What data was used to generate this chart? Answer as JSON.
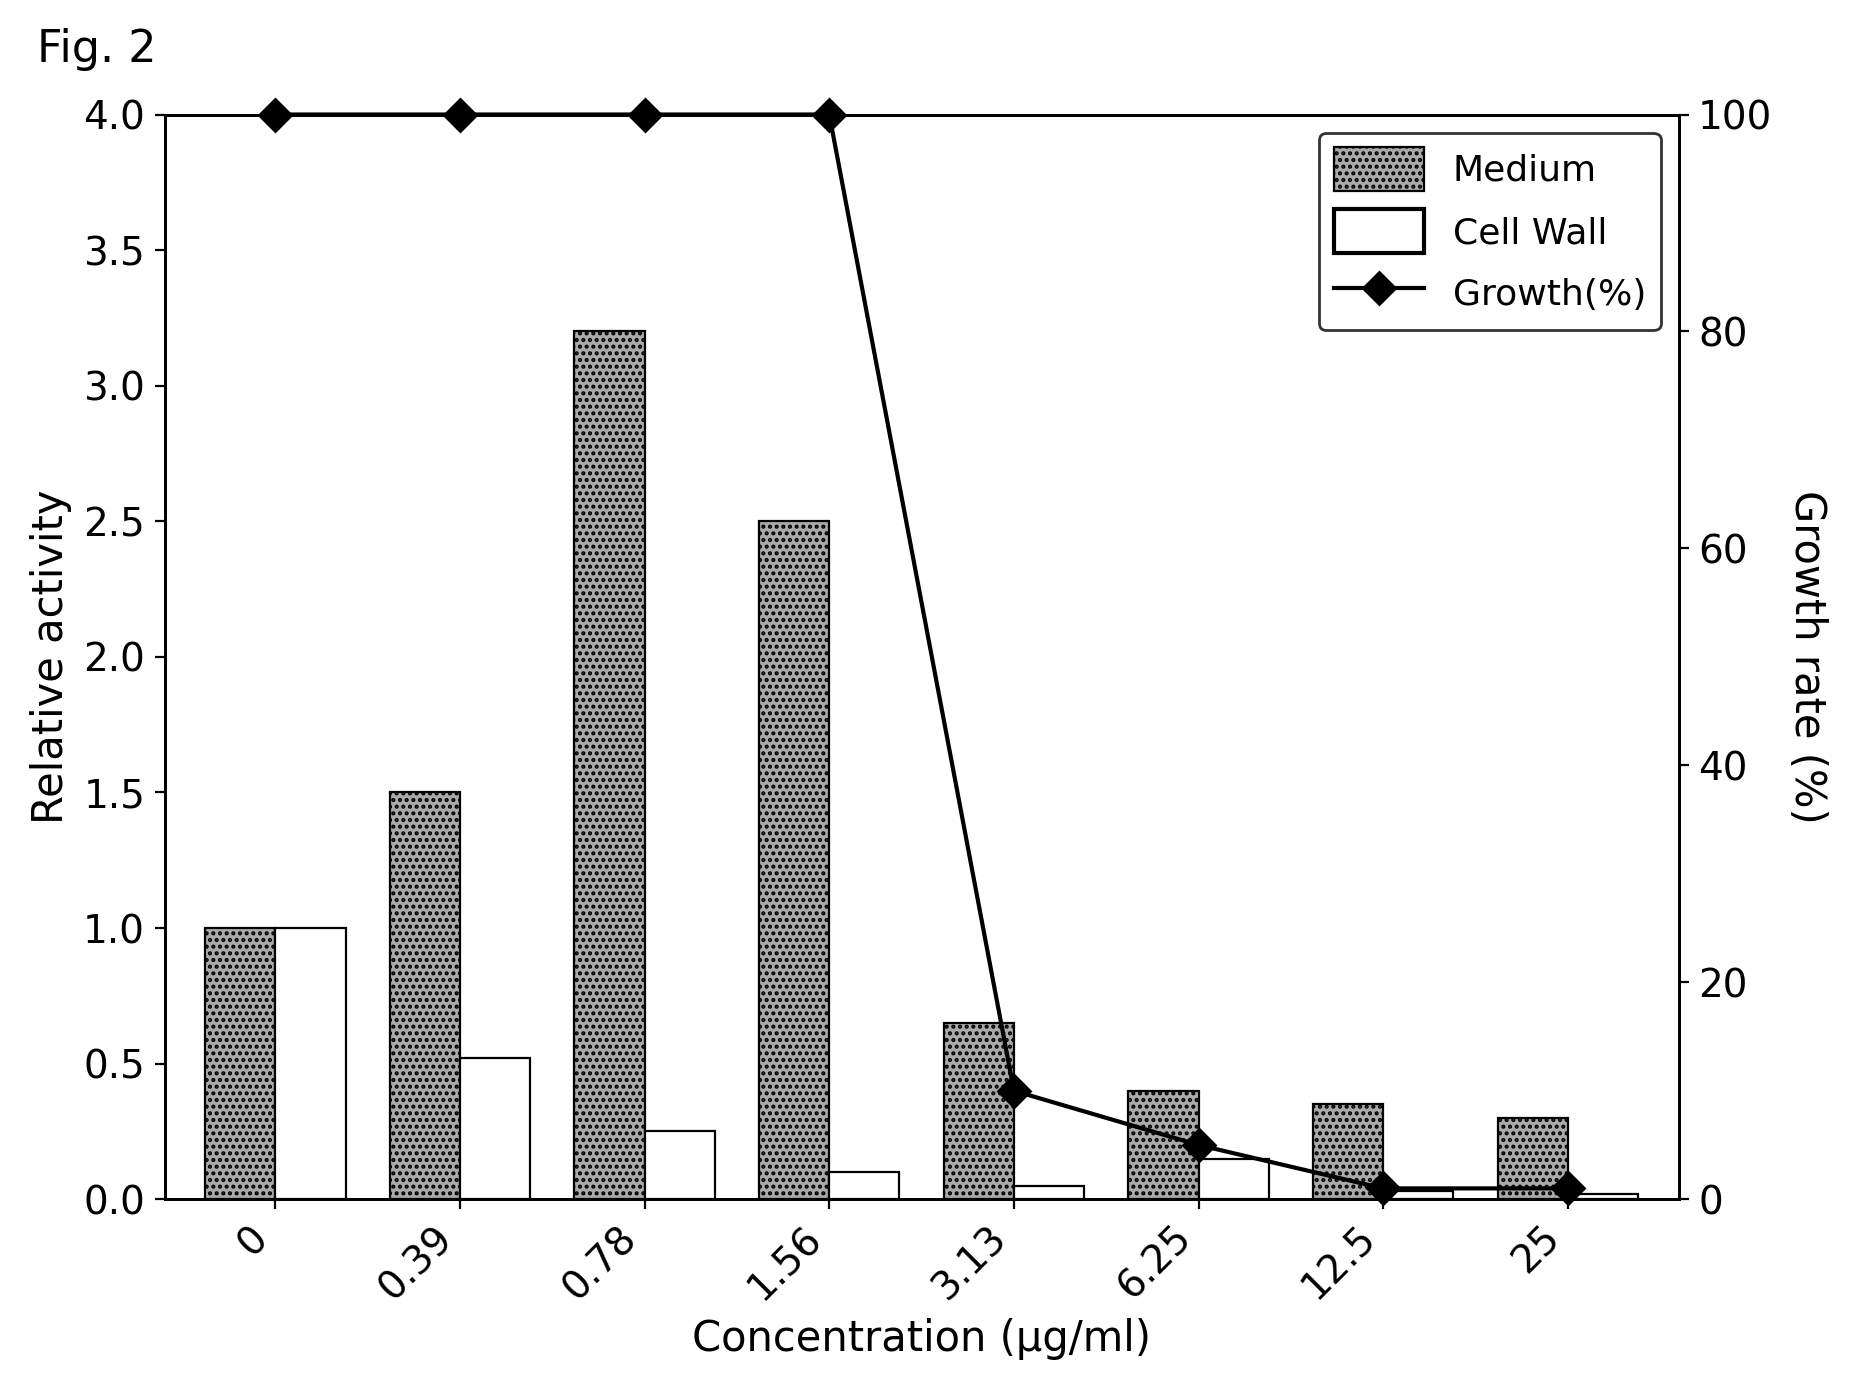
{
  "categories": [
    "0",
    "0.39",
    "0.78",
    "1.56",
    "3.13",
    "6.25",
    "12.5",
    "25"
  ],
  "medium_values": [
    1.0,
    1.5,
    3.2,
    2.5,
    0.65,
    0.4,
    0.35,
    0.3
  ],
  "cell_wall_values": [
    1.0,
    0.52,
    0.25,
    0.1,
    0.05,
    0.15,
    0.03,
    0.02
  ],
  "growth_pct": [
    100,
    100,
    100,
    100,
    10,
    5,
    1,
    1
  ],
  "left_ylim": [
    0,
    4.0
  ],
  "left_yticks": [
    0.0,
    0.5,
    1.0,
    1.5,
    2.0,
    2.5,
    3.0,
    3.5,
    4.0
  ],
  "right_ylim": [
    0,
    100
  ],
  "right_yticks": [
    0,
    20,
    40,
    60,
    80,
    100
  ],
  "xlabel": "Concentration (μg/ml)",
  "ylabel_left": "Relative activity",
  "ylabel_right": "Growth rate (%)",
  "title": "Fig. 2",
  "legend_labels": [
    "Medium",
    "Cell Wall",
    "Growth(%)"
  ],
  "medium_hatch": ".....",
  "cell_wall_hatch": "",
  "bar_width": 0.38,
  "medium_facecolor": "#aaaaaa",
  "cell_wall_facecolor": "#ffffff",
  "medium_edgecolor": "#000000",
  "cell_wall_edgecolor": "#000000",
  "line_color": "#000000",
  "marker": "D",
  "marker_size": 8,
  "background_color": "#ffffff",
  "tick_label_fontsize": 14,
  "axis_label_fontsize": 15,
  "legend_fontsize": 13,
  "title_fontsize": 16,
  "fig_width": 9.29,
  "fig_height": 6.95
}
